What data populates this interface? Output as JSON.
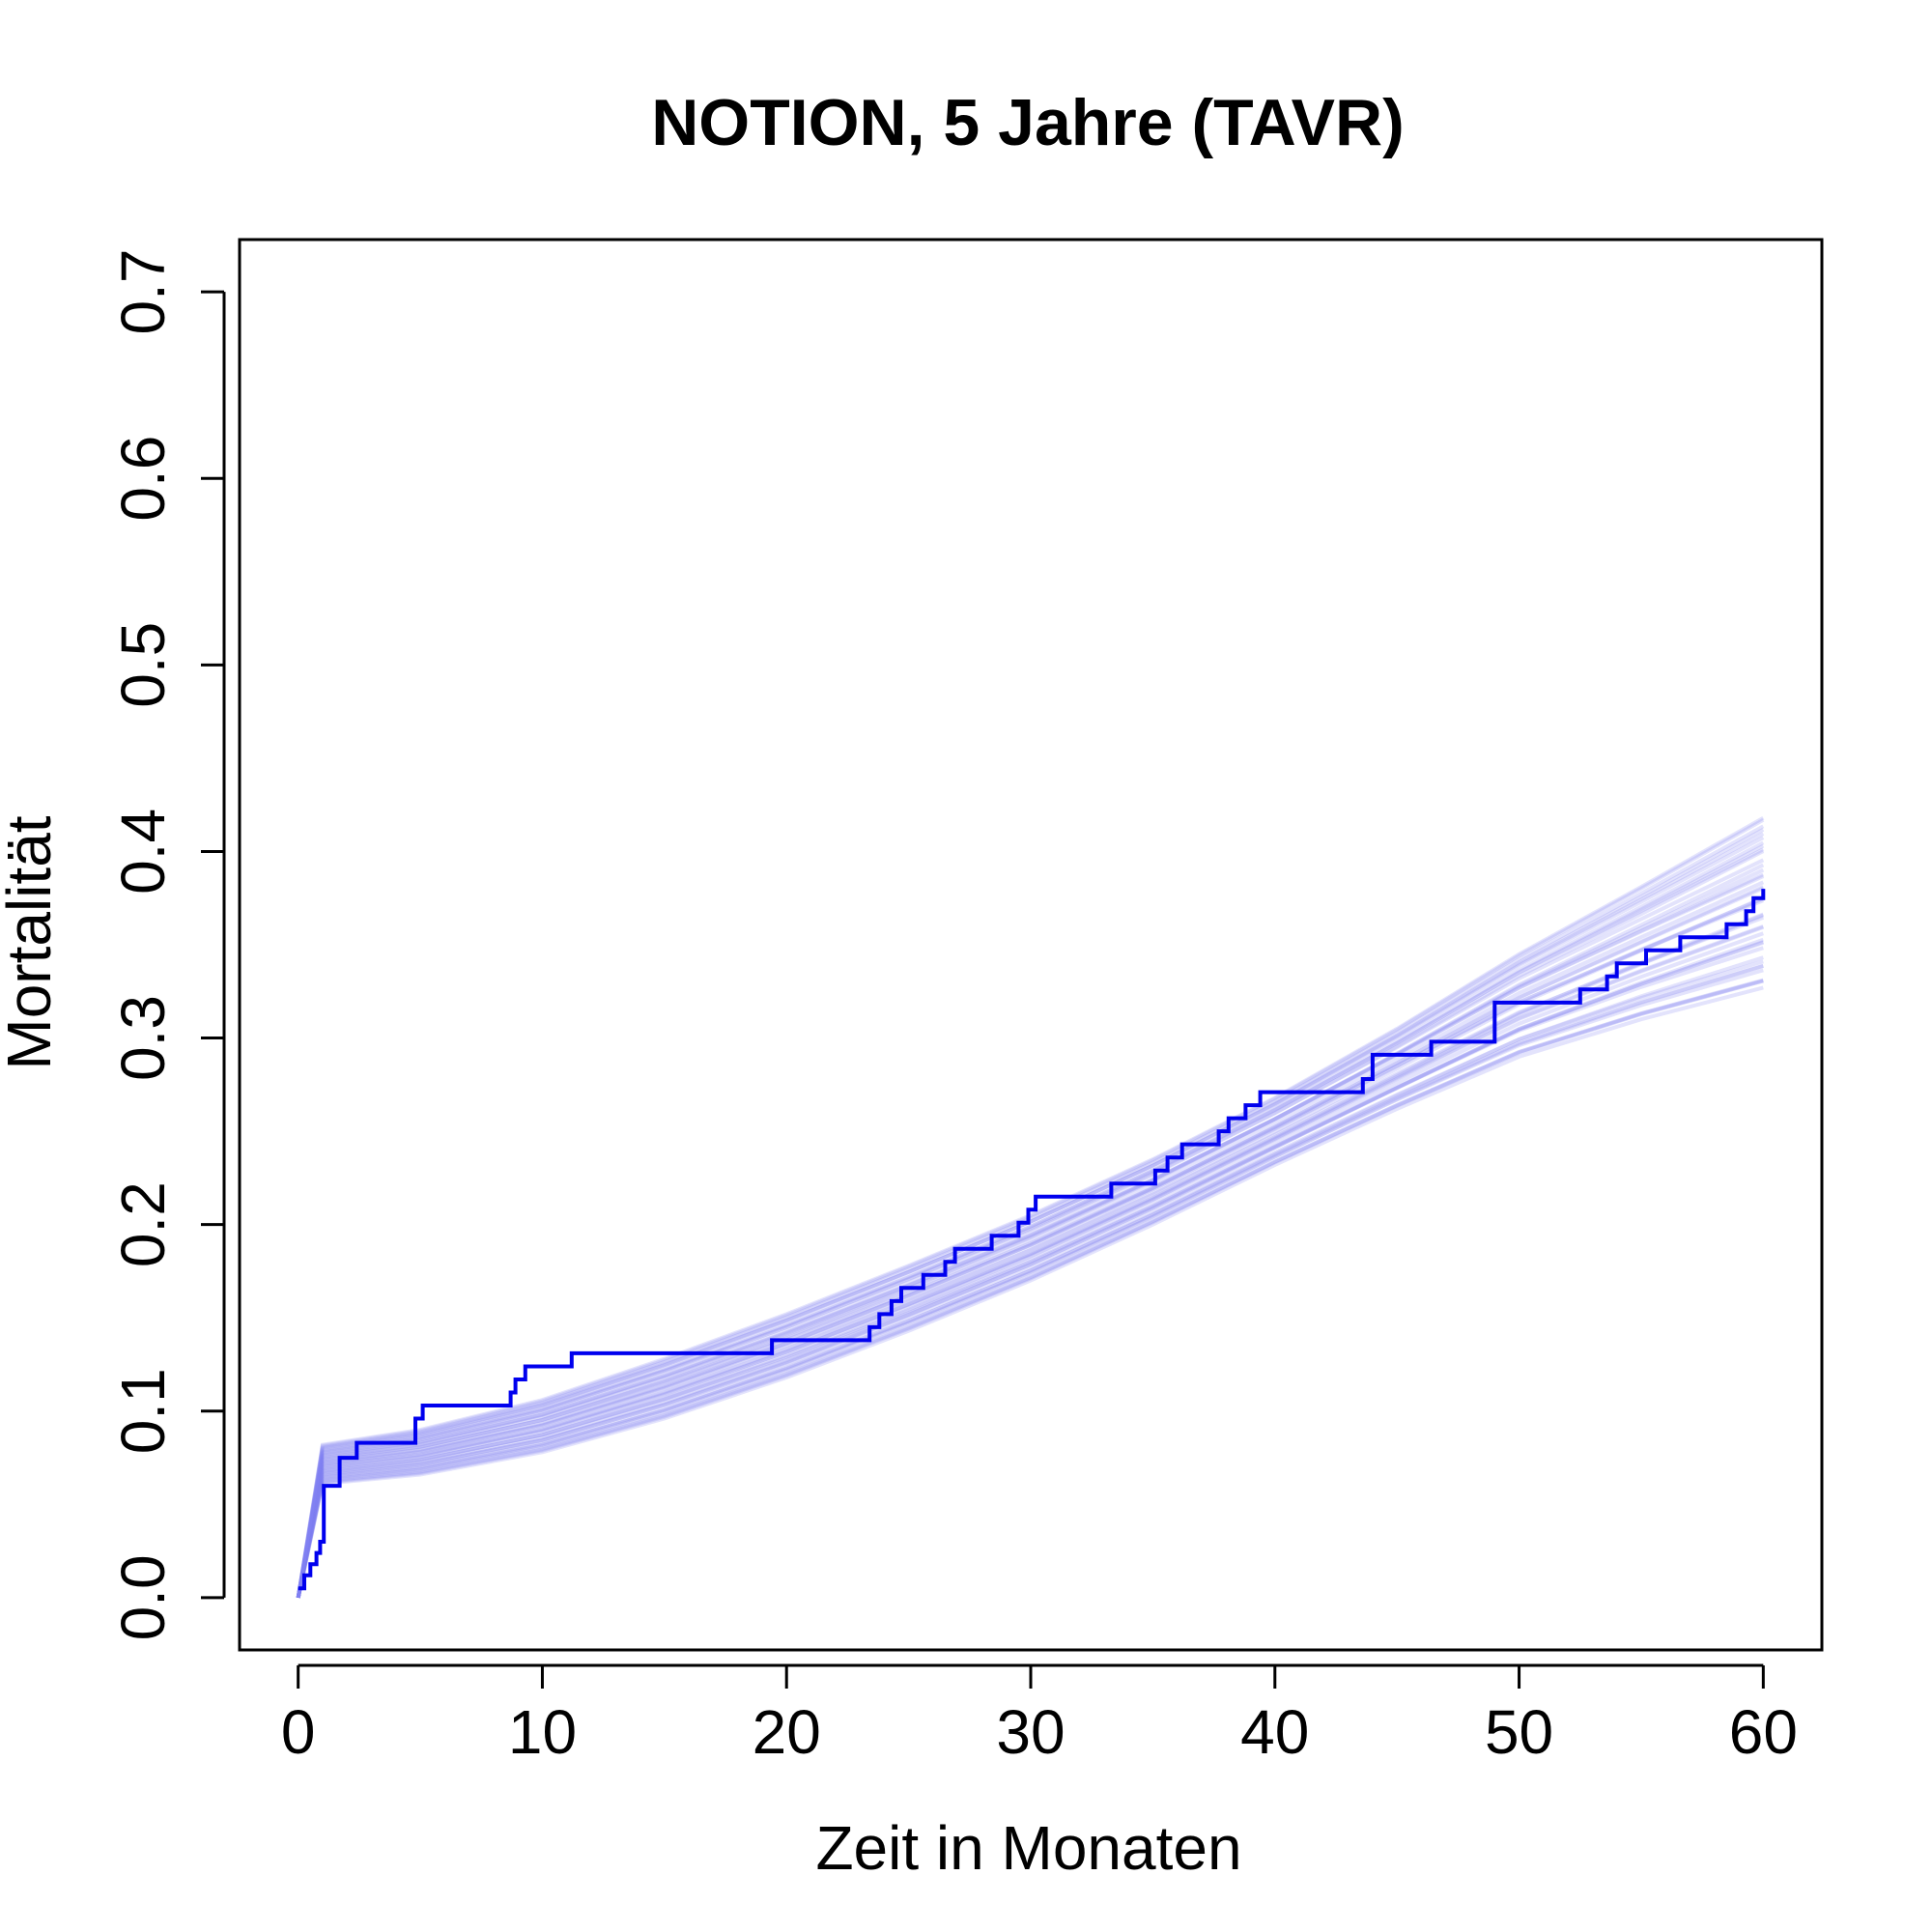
{
  "chart_data": {
    "type": "line",
    "title": "NOTION, 5 Jahre (TAVR)",
    "xlabel": "Zeit in Monaten",
    "ylabel": "Mortalität",
    "xlim": [
      -2.4,
      62.4
    ],
    "ylim": [
      -0.028,
      0.728
    ],
    "xticks": [
      0,
      10,
      20,
      30,
      40,
      50,
      60
    ],
    "yticks": [
      0.0,
      0.1,
      0.2,
      0.3,
      0.4,
      0.5,
      0.6,
      0.7
    ],
    "grid": false,
    "legend": "none",
    "colors": {
      "km_line": "#0000ee",
      "posterior_band": "#8080f0"
    },
    "series": [
      {
        "style": "step",
        "x": [
          0,
          0.25,
          0.5,
          0.75,
          0.9,
          1.05,
          1.7,
          2.4,
          4.8,
          5.1,
          8.7,
          8.9,
          9.3,
          11.2,
          19.4,
          23.4,
          23.8,
          24.3,
          24.7,
          25.0,
          25.6,
          26.0,
          26.5,
          26.9,
          28.4,
          28.8,
          29.5,
          29.9,
          30.2,
          33.3,
          35.1,
          35.6,
          36.2,
          36.6,
          37.7,
          38.1,
          38.4,
          38.8,
          39.4,
          43.6,
          44.0,
          46.4,
          49.0,
          52.5,
          53.6,
          54.0,
          55.2,
          56.6,
          58.5,
          59.3,
          59.6,
          60.0
        ],
        "y": [
          0.005,
          0.012,
          0.018,
          0.024,
          0.03,
          0.06,
          0.075,
          0.083,
          0.096,
          0.103,
          0.11,
          0.117,
          0.124,
          0.131,
          0.138,
          0.145,
          0.152,
          0.159,
          0.166,
          0.166,
          0.173,
          0.173,
          0.18,
          0.187,
          0.194,
          0.194,
          0.201,
          0.208,
          0.215,
          0.222,
          0.229,
          0.236,
          0.243,
          0.243,
          0.25,
          0.257,
          0.257,
          0.264,
          0.271,
          0.278,
          0.291,
          0.298,
          0.319,
          0.326,
          0.333,
          0.34,
          0.347,
          0.354,
          0.361,
          0.368,
          0.375,
          0.38
        ]
      }
    ],
    "posterior_band": {
      "x": [
        0,
        1,
        5,
        10,
        15,
        20,
        25,
        30,
        35,
        40,
        45,
        50,
        55,
        60
      ],
      "lower": [
        0.0,
        0.061,
        0.066,
        0.078,
        0.096,
        0.118,
        0.143,
        0.17,
        0.2,
        0.232,
        0.262,
        0.29,
        0.31,
        0.327
      ],
      "upper": [
        0.0,
        0.082,
        0.09,
        0.106,
        0.128,
        0.152,
        0.178,
        0.205,
        0.235,
        0.268,
        0.305,
        0.345,
        0.381,
        0.418
      ]
    }
  }
}
